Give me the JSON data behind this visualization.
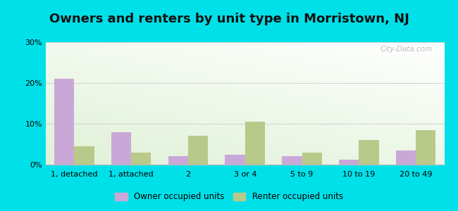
{
  "title": "Owners and renters by unit type in Morristown, NJ",
  "categories": [
    "1, detached",
    "1, attached",
    "2",
    "3 or 4",
    "5 to 9",
    "10 to 19",
    "20 to 49"
  ],
  "owner_values": [
    21,
    8,
    2,
    2.5,
    2,
    1.2,
    3.5
  ],
  "renter_values": [
    4.5,
    3,
    7,
    10.5,
    3,
    6,
    8.5
  ],
  "owner_color": "#c9a8d8",
  "renter_color": "#b8c98a",
  "ylim": [
    0,
    30
  ],
  "yticks": [
    0,
    10,
    20,
    30
  ],
  "ytick_labels": [
    "0%",
    "10%",
    "20%",
    "30%"
  ],
  "outer_color": "#00e0e8",
  "legend_owner": "Owner occupied units",
  "legend_renter": "Renter occupied units",
  "bar_width": 0.35,
  "title_fontsize": 13,
  "watermark": "City-Data.com"
}
